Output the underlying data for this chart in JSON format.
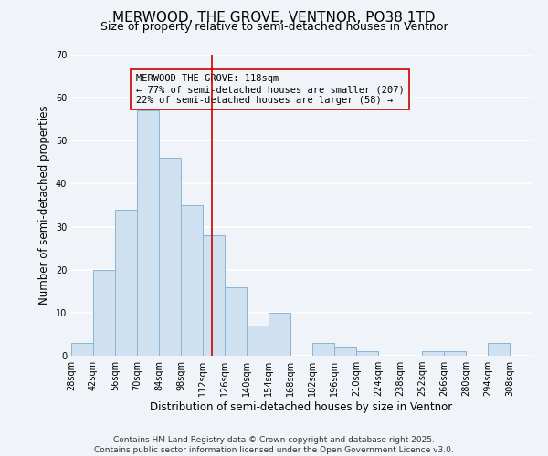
{
  "title": "MERWOOD, THE GROVE, VENTNOR, PO38 1TD",
  "subtitle": "Size of property relative to semi-detached houses in Ventnor",
  "xlabel": "Distribution of semi-detached houses by size in Ventnor",
  "ylabel": "Number of semi-detached properties",
  "bin_labels": [
    "28sqm",
    "42sqm",
    "56sqm",
    "70sqm",
    "84sqm",
    "98sqm",
    "112sqm",
    "126sqm",
    "140sqm",
    "154sqm",
    "168sqm",
    "182sqm",
    "196sqm",
    "210sqm",
    "224sqm",
    "238sqm",
    "252sqm",
    "266sqm",
    "280sqm",
    "294sqm",
    "308sqm"
  ],
  "bin_edges": [
    28,
    42,
    56,
    70,
    84,
    98,
    112,
    126,
    140,
    154,
    168,
    182,
    196,
    210,
    224,
    238,
    252,
    266,
    280,
    294,
    308,
    322
  ],
  "bar_values": [
    3,
    20,
    34,
    57,
    46,
    35,
    28,
    16,
    7,
    10,
    0,
    3,
    2,
    1,
    0,
    0,
    1,
    1,
    0,
    3,
    0
  ],
  "bar_facecolor": "#cfe0f0",
  "bar_edgecolor": "#8ab4d4",
  "vline_x": 118,
  "vline_color": "#cc0000",
  "annotation_text": "MERWOOD THE GROVE: 118sqm\n← 77% of semi-detached houses are smaller (207)\n22% of semi-detached houses are larger (58) →",
  "annotation_box_edgecolor": "#cc0000",
  "ylim": [
    0,
    70
  ],
  "yticks": [
    0,
    10,
    20,
    30,
    40,
    50,
    60,
    70
  ],
  "footer_line1": "Contains HM Land Registry data © Crown copyright and database right 2025.",
  "footer_line2": "Contains public sector information licensed under the Open Government Licence v3.0.",
  "background_color": "#f0f4f8",
  "grid_color": "#ffffff",
  "title_fontsize": 11,
  "subtitle_fontsize": 9,
  "label_fontsize": 8.5,
  "tick_fontsize": 7,
  "annotation_fontsize": 7.5,
  "footer_fontsize": 6.5
}
